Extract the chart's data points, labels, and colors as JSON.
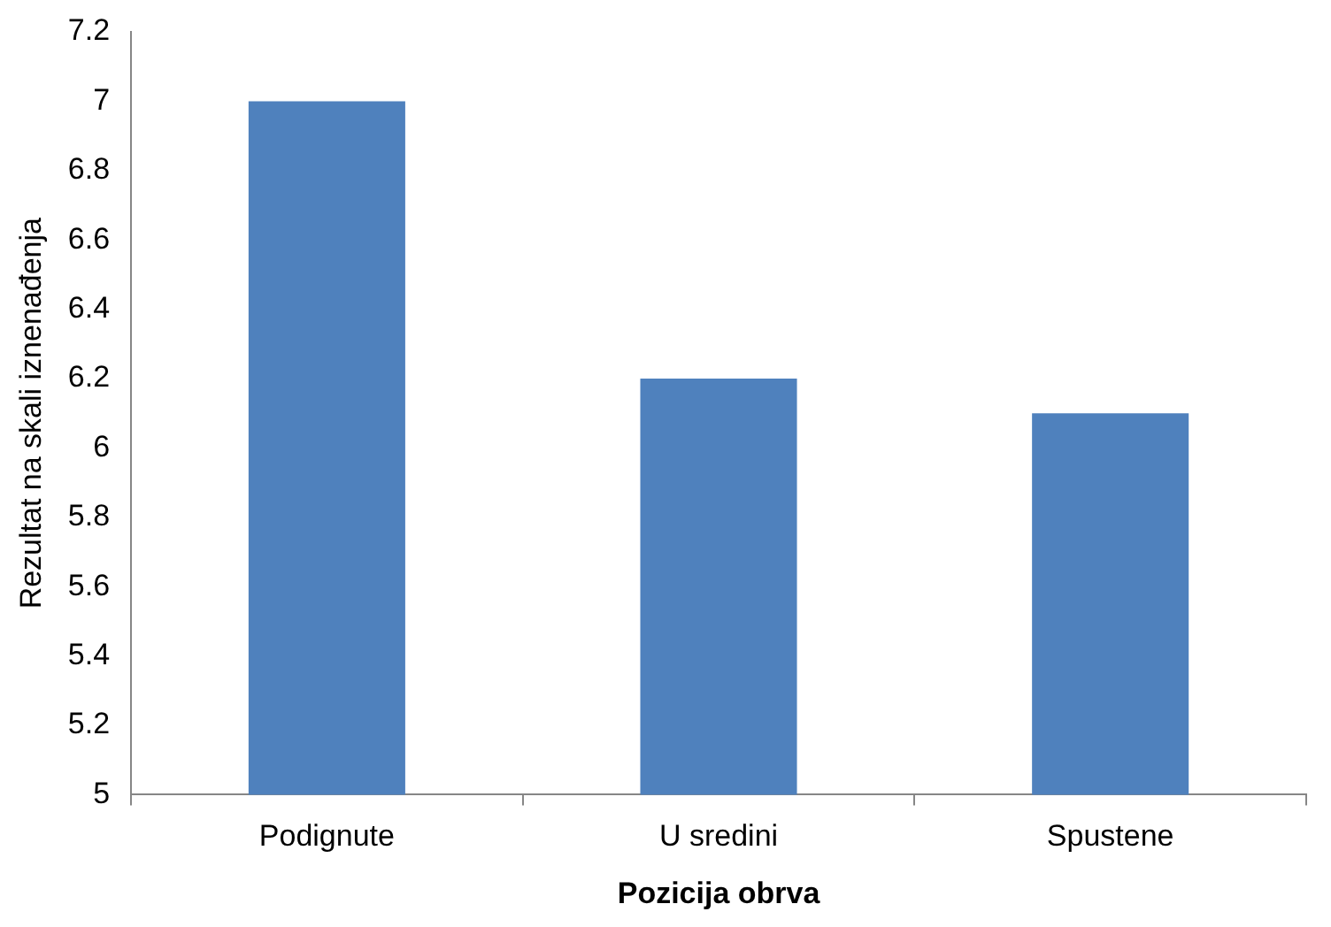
{
  "chart_data": {
    "type": "bar",
    "xlabel": "Pozicija obrva",
    "ylabel": "Rezultat na skali iznenađenja",
    "categories": [
      "Podignute",
      "U sredini",
      "Spustene"
    ],
    "values": [
      7.0,
      6.2,
      6.1
    ],
    "color": "#4f81bd",
    "ylim": [
      5,
      7.2
    ],
    "yticks": [
      5,
      5.2,
      5.4,
      5.6,
      5.8,
      6,
      6.2,
      6.4,
      6.6,
      6.8,
      7,
      7.2
    ],
    "grid": false,
    "legend": false
  }
}
